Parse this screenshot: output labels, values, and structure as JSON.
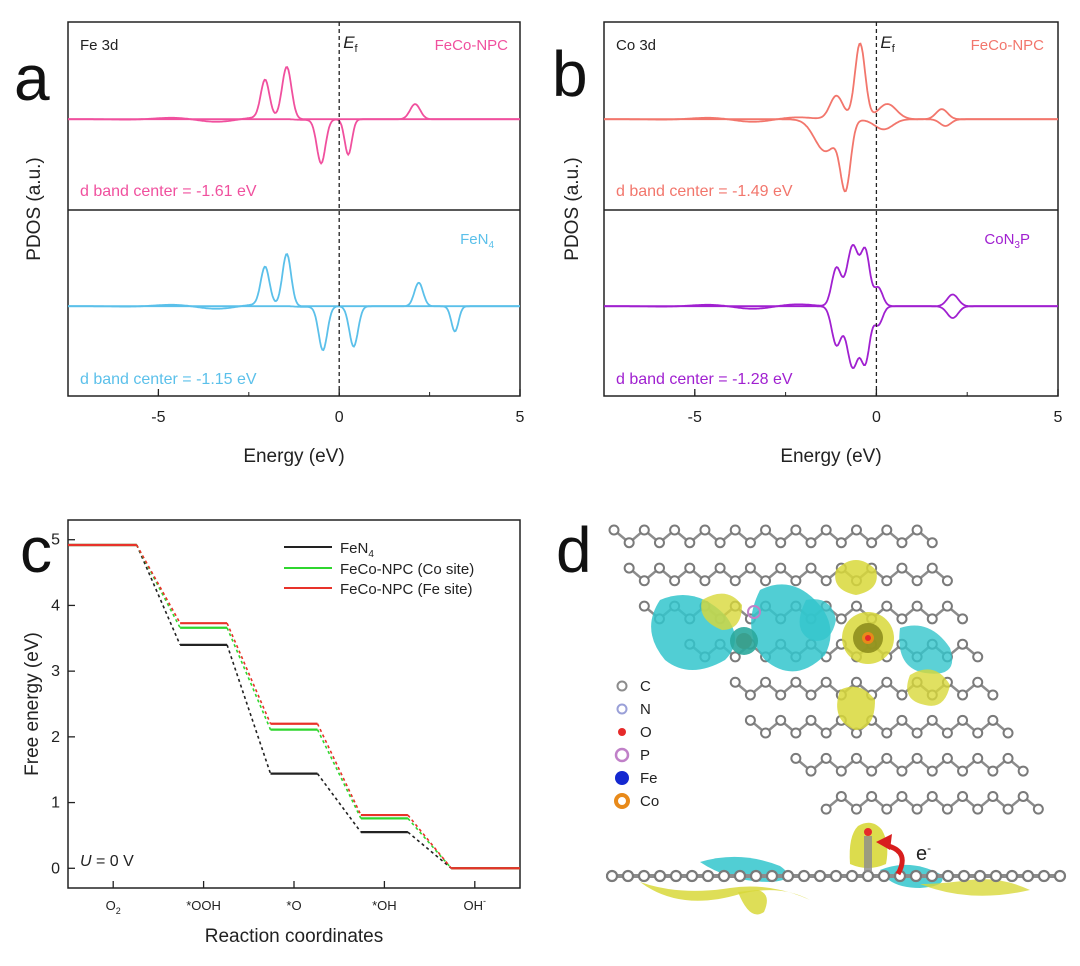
{
  "colors": {
    "fecopink": "#f0509e",
    "fen4blue": "#5bc0ea",
    "cosalmon": "#f2766c",
    "con3ppurple": "#a020d0",
    "black": "#222222",
    "green": "#2fd62f",
    "red": "#e8322a",
    "cyan": "#33c6cc",
    "yellow": "#d8d83a",
    "atom": "#8c8c8c",
    "arrow": "#d81e1e"
  },
  "chart_data": [
    {
      "type": "line",
      "panel": "a",
      "xlabel": "Energy (eV)",
      "ylabel": "PDOS (a.u.)",
      "xlim": [
        -7.5,
        5
      ],
      "xticks": [
        -5,
        0,
        5
      ],
      "xtick_labels": [
        "-5",
        "0",
        "5"
      ],
      "fermi_label": "E",
      "fermi_sub": "f",
      "fermi_x": 0,
      "subplots": [
        {
          "corner_label": "Fe 3d",
          "legend": "FeCo-NPC",
          "color_key": "fecopink",
          "annotation": "d band center = -1.61 eV",
          "peaks_up": [
            [
              -2.05,
              0.45,
              0.12
            ],
            [
              -1.45,
              0.62,
              0.13
            ],
            [
              2.1,
              0.18,
              0.14
            ]
          ],
          "peaks_down": [
            [
              -0.5,
              0.52,
              0.12
            ],
            [
              0.25,
              0.42,
              0.1
            ]
          ]
        },
        {
          "corner_label": "",
          "legend": "FeN",
          "legend_sub": "4",
          "color_key": "fen4blue",
          "annotation": "d band center = -1.15 eV",
          "peaks_up": [
            [
              -2.05,
              0.45,
              0.12
            ],
            [
              -1.45,
              0.62,
              0.12
            ],
            [
              2.2,
              0.28,
              0.12
            ]
          ],
          "peaks_down": [
            [
              -0.45,
              0.52,
              0.12
            ],
            [
              0.4,
              0.48,
              0.12
            ],
            [
              3.2,
              0.3,
              0.1
            ]
          ]
        }
      ]
    },
    {
      "type": "line",
      "panel": "b",
      "xlabel": "Energy (eV)",
      "ylabel": "PDOS (a.u.)",
      "xlim": [
        -7.5,
        5
      ],
      "xticks": [
        -5,
        0,
        5
      ],
      "xtick_labels": [
        "-5",
        "0",
        "5"
      ],
      "fermi_label": "E",
      "fermi_sub": "f",
      "fermi_x": 0,
      "subplots": [
        {
          "corner_label": "Co 3d",
          "legend": "FeCo-NPC",
          "color_key": "cosalmon",
          "annotation": "d band center = -1.49 eV",
          "peaks_up": [
            [
              -1.1,
              0.28,
              0.18
            ],
            [
              -0.45,
              0.9,
              0.14
            ],
            [
              0.3,
              0.18,
              0.25
            ],
            [
              1.8,
              0.12,
              0.16
            ]
          ],
          "peaks_down": [
            [
              -1.4,
              0.38,
              0.3
            ],
            [
              -0.85,
              0.78,
              0.14
            ],
            [
              0.2,
              0.12,
              0.25
            ],
            [
              1.9,
              0.08,
              0.15
            ]
          ]
        },
        {
          "corner_label": "",
          "legend": "CoN",
          "legend_sub": "3",
          "legend_tail": "P",
          "color_key": "con3ppurple",
          "annotation": "d band center = -1.28 eV",
          "peaks_up": [
            [
              -1.1,
              0.45,
              0.13
            ],
            [
              -0.65,
              0.72,
              0.16
            ],
            [
              -0.3,
              0.62,
              0.12
            ],
            [
              0.05,
              0.22,
              0.12
            ],
            [
              2.1,
              0.14,
              0.15
            ]
          ],
          "peaks_down": [
            [
              -1.1,
              0.45,
              0.13
            ],
            [
              -0.65,
              0.72,
              0.16
            ],
            [
              -0.3,
              0.62,
              0.12
            ],
            [
              0.05,
              0.22,
              0.12
            ],
            [
              2.1,
              0.14,
              0.15
            ]
          ]
        }
      ]
    },
    {
      "type": "line",
      "panel": "c",
      "xlabel": "Reaction coordinates",
      "ylabel": "Free energy (eV)",
      "ylim": [
        -0.3,
        5.3
      ],
      "yticks": [
        0,
        1,
        2,
        3,
        4,
        5
      ],
      "ytick_labels": [
        "0",
        "1",
        "2",
        "3",
        "4",
        "5"
      ],
      "categories": [
        "O2",
        "*OOH",
        "*O",
        "*OH",
        "OH-"
      ],
      "category_labels": [
        {
          "main": "O",
          "sub": "2",
          "sup": ""
        },
        {
          "main": "*OOH",
          "sub": "",
          "sup": ""
        },
        {
          "main": "*O",
          "sub": "",
          "sup": ""
        },
        {
          "main": "*OH",
          "sub": "",
          "sup": ""
        },
        {
          "main": "OH",
          "sub": "",
          "sup": "-"
        }
      ],
      "annotation_main": "U",
      "annotation_rest": " = 0 V",
      "series": [
        {
          "name": "FeN",
          "name_sub": "4",
          "name_tail": "",
          "color_key": "black",
          "values": [
            4.92,
            3.4,
            1.44,
            0.55,
            0.0
          ]
        },
        {
          "name": "FeCo-NPC (Co site)",
          "name_sub": "",
          "name_tail": "",
          "color_key": "green",
          "values": [
            4.92,
            3.66,
            2.11,
            0.76,
            0.0
          ]
        },
        {
          "name": "FeCo-NPC (Fe site)",
          "name_sub": "",
          "name_tail": "",
          "color_key": "red",
          "values": [
            4.92,
            3.73,
            2.2,
            0.81,
            0.0
          ]
        }
      ]
    }
  ],
  "panel_labels": {
    "a": "a",
    "b": "b",
    "c": "c",
    "d": "d"
  },
  "panel_d": {
    "legend": [
      {
        "label": "C",
        "color": "#8c8c8c",
        "style": "ring"
      },
      {
        "label": "N",
        "color": "#9aa0d8",
        "style": "ring"
      },
      {
        "label": "O",
        "color": "#e62a2a",
        "style": "dot"
      },
      {
        "label": "P",
        "color": "#c080c8",
        "style": "ring-big"
      },
      {
        "label": "Fe",
        "color": "#1428d0",
        "style": "ball"
      },
      {
        "label": "Co",
        "color": "#e88a1a",
        "style": "ball-ring"
      }
    ],
    "electron_label": "e",
    "electron_sup": "-"
  }
}
